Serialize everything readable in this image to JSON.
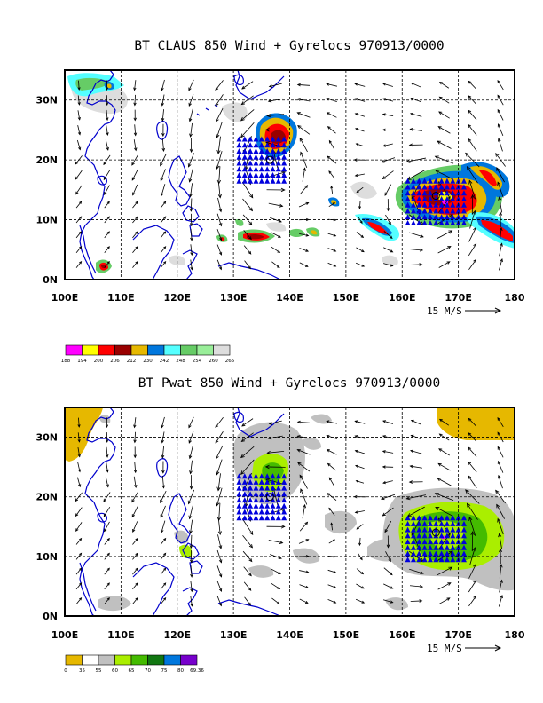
{
  "panels": [
    {
      "id": "claus",
      "title": "BT CLAUS 850 Wind + Gyrelocs 970913/0000",
      "colorbar_labels": [
        "188",
        "194",
        "200",
        "206",
        "212",
        "230",
        "242",
        "248",
        "254",
        "260",
        "265"
      ],
      "colorbar_colors": [
        "#ff00ff",
        "#ffff00",
        "#ff0000",
        "#990000",
        "#e6b800",
        "#0077dd",
        "#55ffff",
        "#66cc66",
        "#99ee99",
        "#dddddd"
      ]
    },
    {
      "id": "pwat",
      "title": "BT Pwat 850 Wind + Gyrelocs 970913/0000",
      "colorbar_labels": [
        "0",
        "35",
        "55",
        "60",
        "65",
        "70",
        "75",
        "80",
        "69.36"
      ],
      "colorbar_colors": [
        "#e6b800",
        "#ffffff",
        "#c0c0c0",
        "#aaee00",
        "#44bb00",
        "#117711",
        "#0077dd",
        "#7700cc"
      ]
    }
  ],
  "axes": {
    "lon_labels": [
      "100E",
      "110E",
      "120E",
      "130E",
      "140E",
      "150E",
      "160E",
      "170E",
      "180"
    ],
    "lat_labels": [
      "30N",
      "20N",
      "10N",
      "0N"
    ]
  },
  "reference_vector_label": "15 M/S",
  "gyre_markers": [
    {
      "name": "gyre-west",
      "lon": 136.5,
      "lat": 20.0
    },
    {
      "name": "gyre-east",
      "lon": 166.0,
      "lat": 14.0
    }
  ]
}
